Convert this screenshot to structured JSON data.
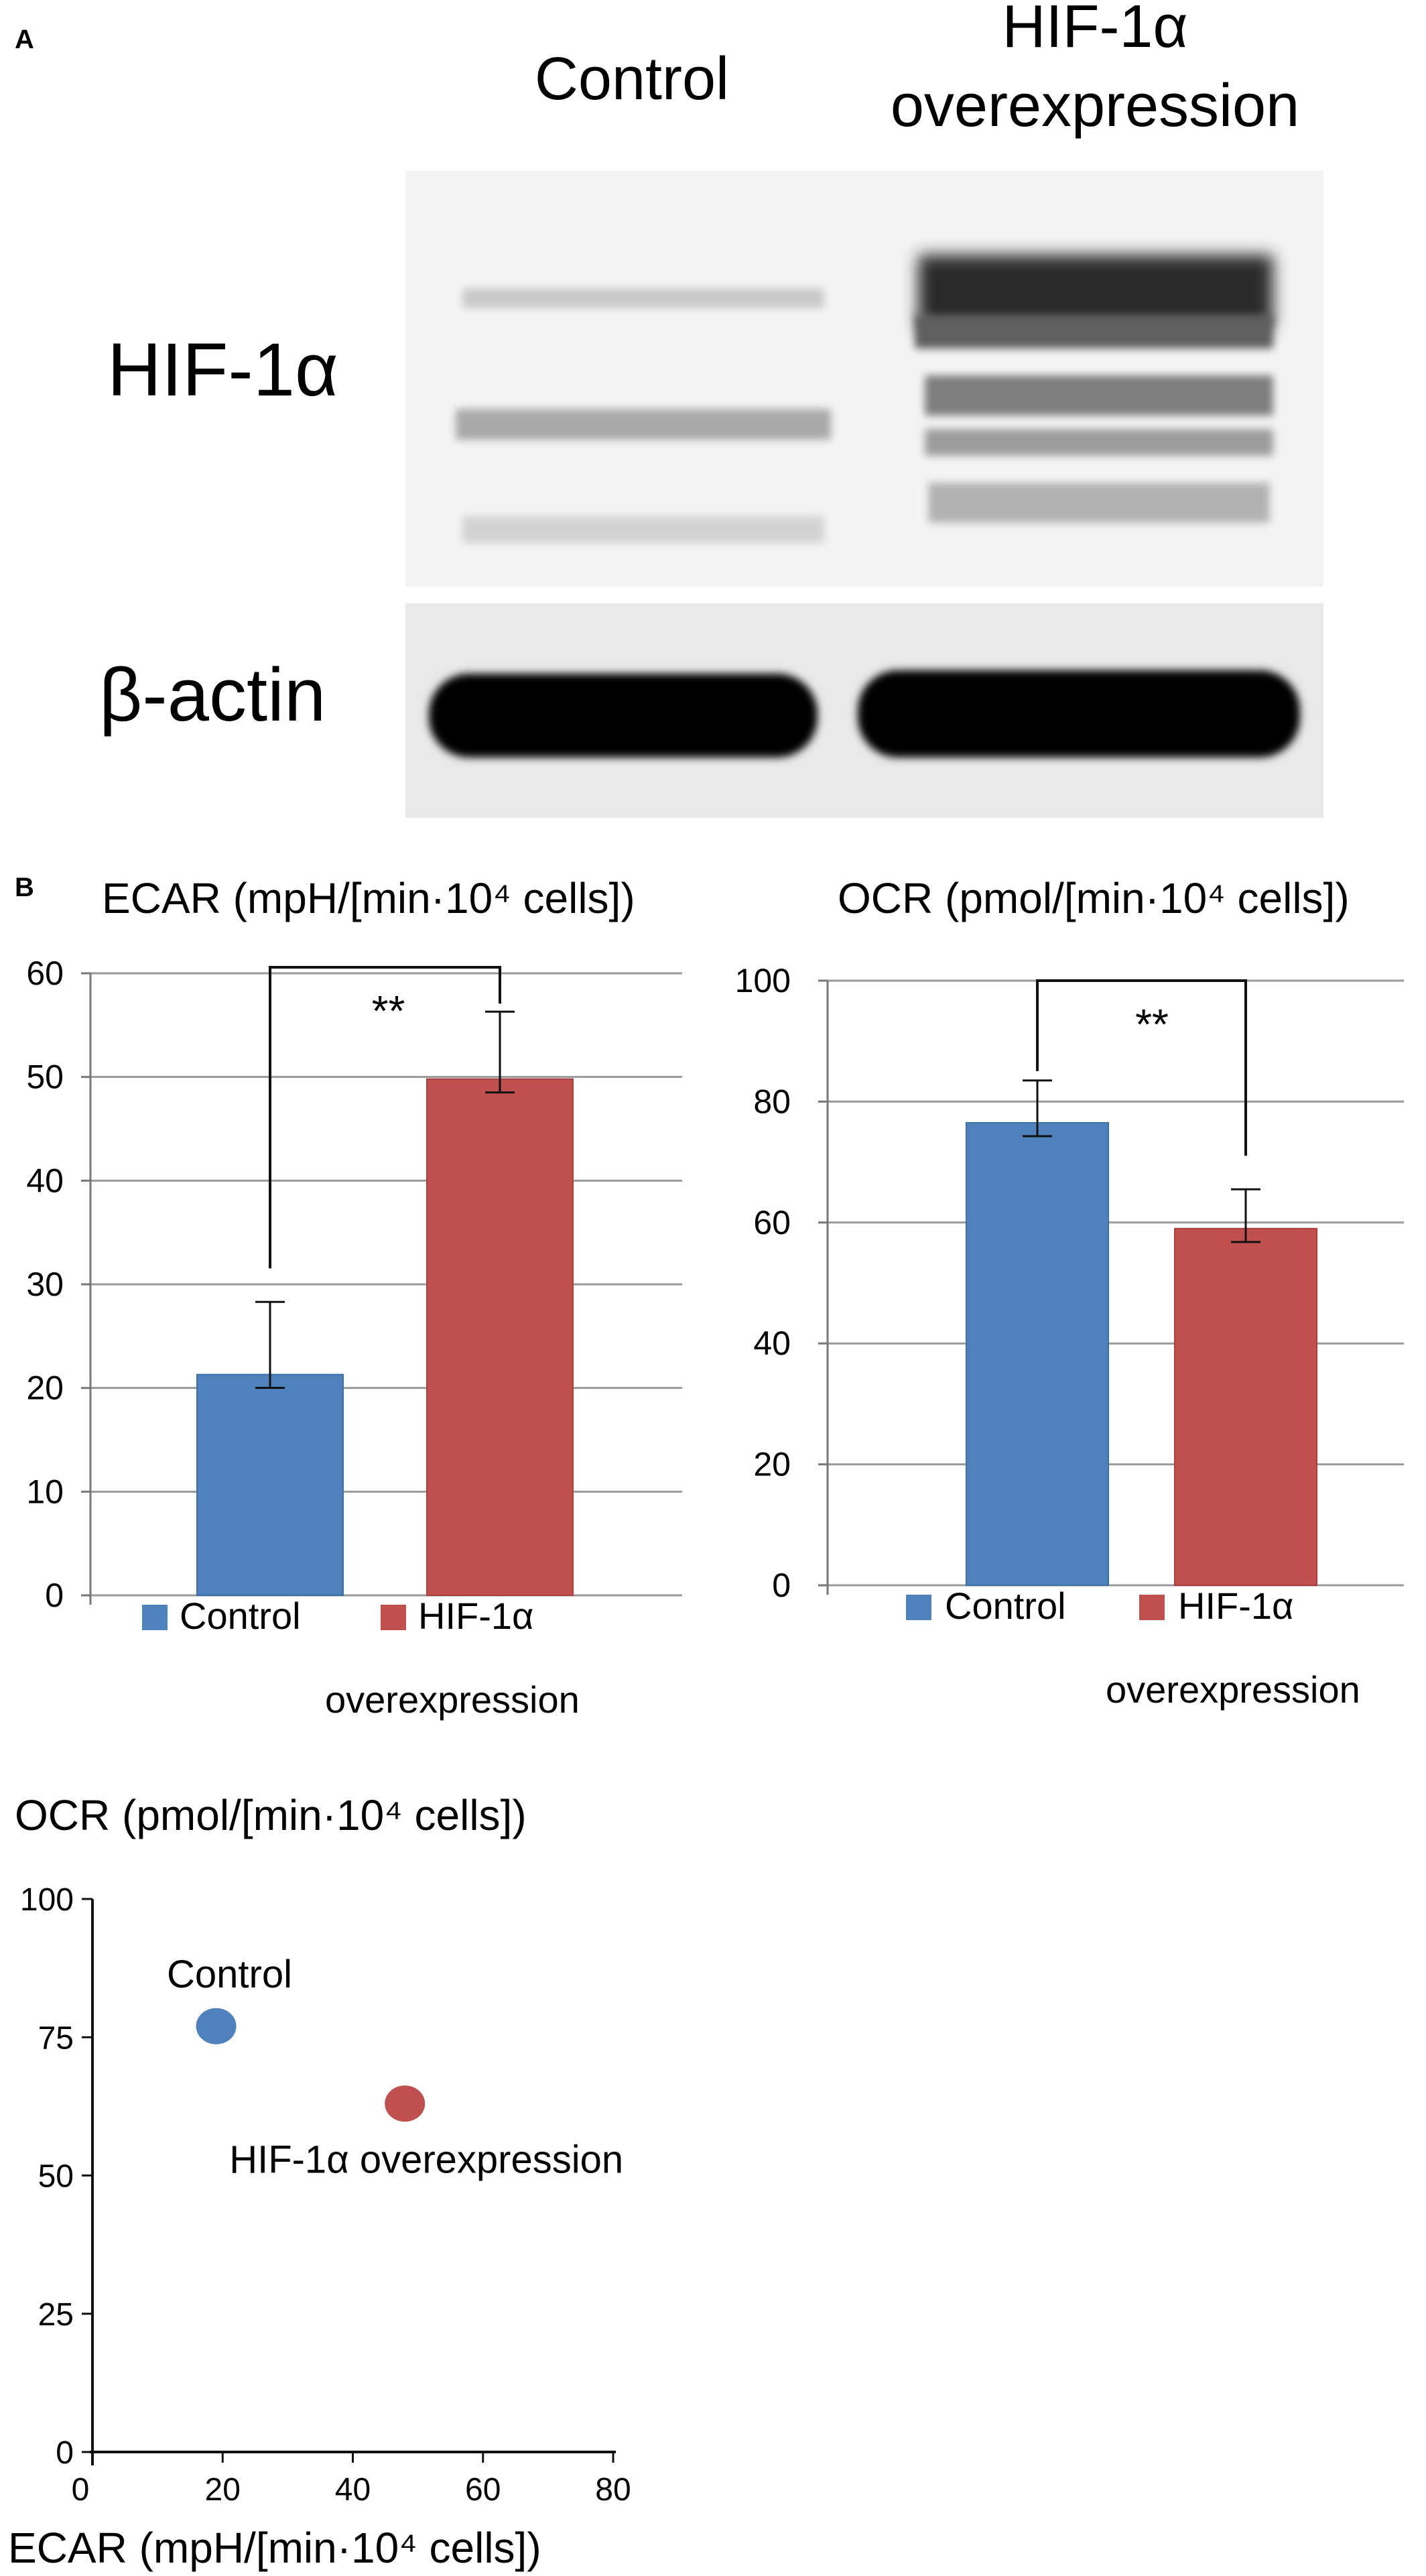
{
  "figure": {
    "panel_a_label": "A",
    "panel_b_label": "B"
  },
  "blot": {
    "lanes": [
      "Control",
      "HIF-1α overexpression"
    ],
    "lane2_line1": "HIF-1α",
    "lane2_line2": "overexpression",
    "rows": [
      "HIF-1α",
      "β-actin"
    ]
  },
  "chart_data": [
    {
      "type": "bar",
      "title": "ECAR (mpH/[min·10⁴ cells])",
      "categories": [
        "Control",
        "HIF-1α overexpression"
      ],
      "values": [
        21.3,
        49.8
      ],
      "errors": [
        7.0,
        6.5
      ],
      "colors": [
        "#4f81bd",
        "#c0504d"
      ],
      "ylim": [
        0,
        60
      ],
      "yticks": [
        "0",
        "10",
        "20",
        "30",
        "40",
        "50",
        "60"
      ],
      "significance": "**",
      "legend": [
        "Control",
        "HIF-1α",
        "overexpression"
      ],
      "grid": true
    },
    {
      "type": "bar",
      "title": "OCR (pmol/[min·10⁴ cells])",
      "categories": [
        "Control",
        "HIF-1α overexpression"
      ],
      "values": [
        76.5,
        59.0
      ],
      "errors": [
        7.0,
        6.5
      ],
      "colors": [
        "#4f81bd",
        "#c0504d"
      ],
      "ylim": [
        0,
        100
      ],
      "yticks": [
        "0",
        "20",
        "40",
        "60",
        "80",
        "100"
      ],
      "significance": "**",
      "legend": [
        "Control",
        "HIF-1α",
        "overexpression"
      ],
      "grid": true
    },
    {
      "type": "scatter",
      "ylabel": "OCR (pmol/[min·10⁴ cells])",
      "xlabel": "ECAR (mpH/[min·10⁴ cells])",
      "points": [
        {
          "label": "Control",
          "x": 19,
          "y": 77,
          "color": "#4f81bd"
        },
        {
          "label": "HIF-1α overexpression",
          "x": 48,
          "y": 63,
          "color": "#c0504d"
        }
      ],
      "xlim": [
        0,
        80
      ],
      "ylim": [
        0,
        100
      ],
      "xticks": [
        "0",
        "20",
        "40",
        "60",
        "80"
      ],
      "yticks": [
        "0",
        "25",
        "50",
        "75",
        "100"
      ],
      "grid": false
    }
  ]
}
